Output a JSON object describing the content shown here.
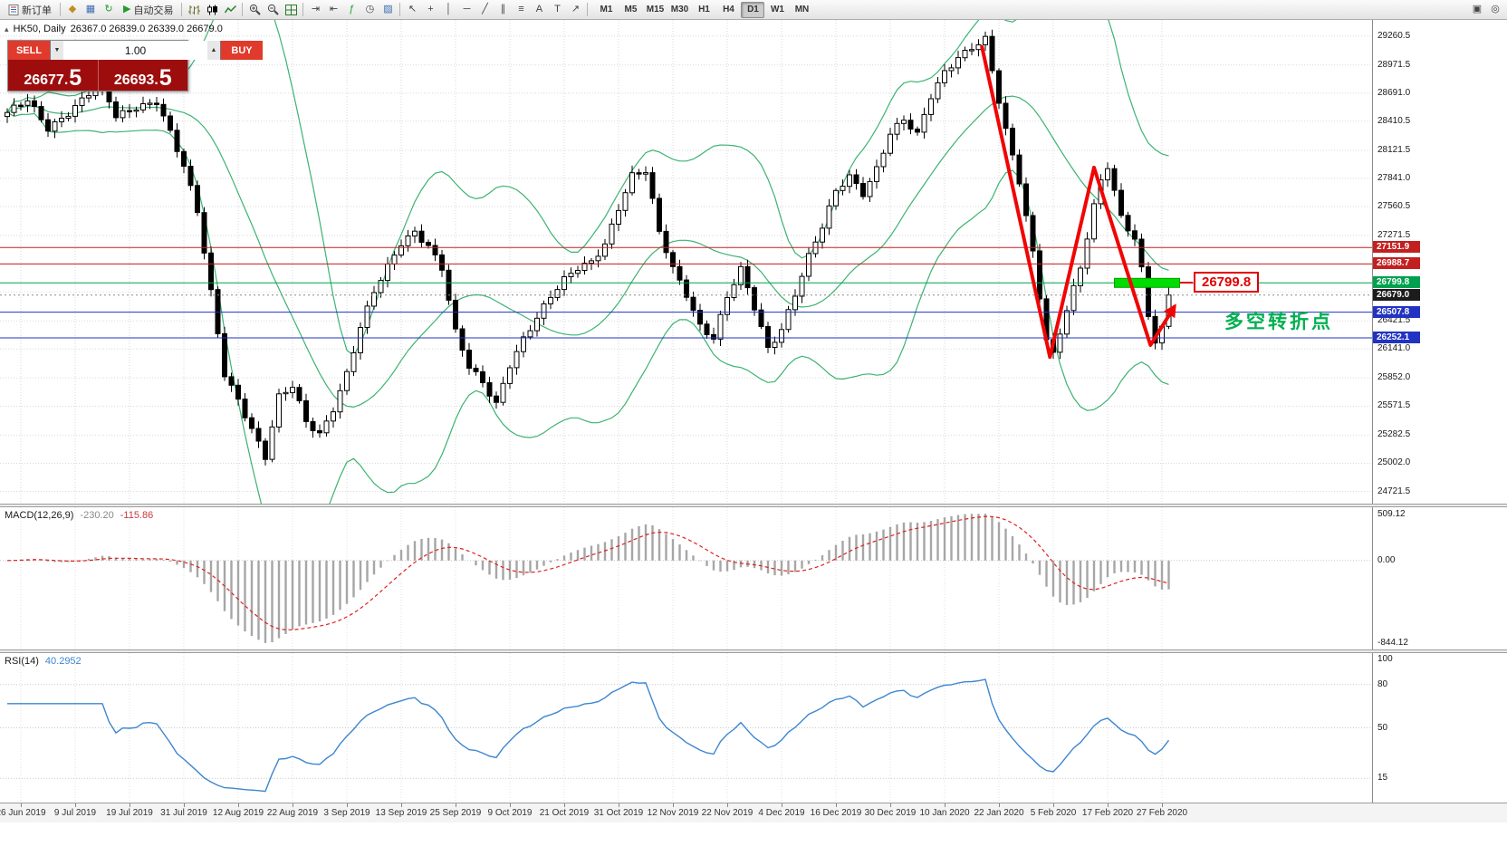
{
  "toolbar": {
    "new_order_label": "新订单",
    "autotrading_label": "自动交易",
    "timeframes": [
      "M1",
      "M5",
      "M15",
      "M30",
      "H1",
      "H4",
      "D1",
      "W1",
      "MN"
    ],
    "active_timeframe": "D1"
  },
  "icons": {
    "coins": "◆",
    "chart_window": "▦",
    "refresh": "↻",
    "play": "▶",
    "shift_end": "⇥",
    "auto_scroll": "⇤",
    "indicators": "ƒ",
    "clock": "◷",
    "template": "▨",
    "cursor": "↖",
    "crosshair": "+",
    "vertical_line": "│",
    "horizontal_line": "─",
    "trendline": "╱",
    "channel": "∥",
    "fibonacci": "≡",
    "text": "A",
    "label": "T",
    "arrow": "↗",
    "spin_up": "▲",
    "spin_down": "▼",
    "window_min": "▴",
    "window_grid": "▣",
    "search": "◎"
  },
  "chart_header": {
    "symbol_period": "HK50, Daily",
    "ohlc": "26367.0 26839.0 26339.0 26679.0"
  },
  "order_panel": {
    "sell_label": "SELL",
    "buy_label": "BUY",
    "volume": "1.00",
    "sell_price": "26677.5",
    "buy_price": "26693.5"
  },
  "annotations": {
    "price_callout": "26799.8",
    "callout_color": "#e00000",
    "callout_anchor_bar": 174.6,
    "note_text": "多空转折点",
    "note_color": "#00b050",
    "note_anchor_bar": 179.2,
    "note_anchor_price": 26445
  },
  "price_axis": {
    "plain_ticks": [
      29260.5,
      28971.5,
      28691.0,
      28410.5,
      28121.5,
      27841.0,
      27560.5,
      27271.5,
      26421.5,
      26141.0,
      25852.0,
      25571.5,
      25282.5,
      25002.0,
      24721.5
    ],
    "grid_only_ticks": [
      26991.0,
      26710.5
    ],
    "line_tags": [
      {
        "price": 27151.9,
        "label": "27151.9",
        "color": "#c22020",
        "style": "solid"
      },
      {
        "price": 26988.7,
        "label": "26988.7",
        "color": "#c22020",
        "style": "solid"
      },
      {
        "price": 26799.8,
        "label": "26799.8",
        "color": "#00a14e",
        "style": "solid"
      },
      {
        "price": 26679.0,
        "label": "26679.0",
        "color": "#1c1c1c",
        "style": "dotted"
      },
      {
        "price": 26507.8,
        "label": "26507.8",
        "color": "#2233c2",
        "style": "solid"
      },
      {
        "price": 26252.1,
        "label": "26252.1",
        "color": "#2233c2",
        "style": "solid"
      }
    ]
  },
  "macd_panel": {
    "label": "MACD(12,26,9)",
    "value_main": "-230.20",
    "value_signal": "-115.86",
    "axis_top": "509.12",
    "axis_zero": "0.00",
    "axis_bottom": "-844.12"
  },
  "rsi_panel": {
    "label": "RSI(14)",
    "value": "40.2952",
    "axis_labels": [
      100,
      80,
      50,
      15
    ],
    "levels": [
      80,
      50,
      15
    ]
  },
  "date_axis": [
    "26 Jun 2019",
    "9 Jul 2019",
    "19 Jul 2019",
    "31 Jul 2019",
    "12 Aug 2019",
    "22 Aug 2019",
    "3 Sep 2019",
    "13 Sep 2019",
    "25 Sep 2019",
    "9 Oct 2019",
    "21 Oct 2019",
    "31 Oct 2019",
    "12 Nov 2019",
    "22 Nov 2019",
    "4 Dec 2019",
    "16 Dec 2019",
    "30 Dec 2019",
    "10 Jan 2020",
    "22 Jan 2020",
    "5 Feb 2020",
    "17 Feb 2020",
    "27 Feb 2020"
  ],
  "chart_data": {
    "type": "candlestick",
    "symbol": "HK50",
    "period": "Daily",
    "bars_total": 172,
    "price_top": 29420,
    "price_bottom": 24600,
    "current_bar": {
      "open": 26367.0,
      "high": 26839.0,
      "low": 26339.0,
      "close": 26679.0
    },
    "close_anchors": [
      [
        0,
        28480
      ],
      [
        3,
        28620
      ],
      [
        6,
        28350
      ],
      [
        9,
        28500
      ],
      [
        12,
        28680
      ],
      [
        14,
        28760
      ],
      [
        16,
        28450
      ],
      [
        19,
        28560
      ],
      [
        22,
        28620
      ],
      [
        24,
        28300
      ],
      [
        26,
        27950
      ],
      [
        28,
        27500
      ],
      [
        30,
        26700
      ],
      [
        32,
        25900
      ],
      [
        34,
        25650
      ],
      [
        36,
        25350
      ],
      [
        38,
        25060
      ],
      [
        40,
        25650
      ],
      [
        42,
        25760
      ],
      [
        44,
        25420
      ],
      [
        46,
        25300
      ],
      [
        48,
        25560
      ],
      [
        50,
        25900
      ],
      [
        52,
        26350
      ],
      [
        54,
        26700
      ],
      [
        56,
        26950
      ],
      [
        58,
        27200
      ],
      [
        60,
        27320
      ],
      [
        62,
        27180
      ],
      [
        64,
        26950
      ],
      [
        66,
        26300
      ],
      [
        68,
        25950
      ],
      [
        70,
        25800
      ],
      [
        72,
        25600
      ],
      [
        74,
        26000
      ],
      [
        76,
        26250
      ],
      [
        78,
        26450
      ],
      [
        80,
        26650
      ],
      [
        82,
        26820
      ],
      [
        84,
        26950
      ],
      [
        86,
        27020
      ],
      [
        88,
        27200
      ],
      [
        90,
        27550
      ],
      [
        92,
        27860
      ],
      [
        94,
        27900
      ],
      [
        96,
        27300
      ],
      [
        98,
        26950
      ],
      [
        100,
        26700
      ],
      [
        102,
        26380
      ],
      [
        104,
        26250
      ],
      [
        106,
        26650
      ],
      [
        108,
        26920
      ],
      [
        110,
        26550
      ],
      [
        112,
        26150
      ],
      [
        114,
        26350
      ],
      [
        116,
        26700
      ],
      [
        118,
        27060
      ],
      [
        120,
        27350
      ],
      [
        122,
        27700
      ],
      [
        124,
        27860
      ],
      [
        126,
        27700
      ],
      [
        128,
        27950
      ],
      [
        130,
        28300
      ],
      [
        132,
        28420
      ],
      [
        134,
        28260
      ],
      [
        136,
        28650
      ],
      [
        138,
        28900
      ],
      [
        140,
        29060
      ],
      [
        142,
        29160
      ],
      [
        144,
        29230
      ],
      [
        146,
        28600
      ],
      [
        147,
        28300
      ],
      [
        149,
        27800
      ],
      [
        151,
        27100
      ],
      [
        153,
        26250
      ],
      [
        154,
        26100
      ],
      [
        156,
        26550
      ],
      [
        158,
        26950
      ],
      [
        160,
        27550
      ],
      [
        161,
        27800
      ],
      [
        162,
        27950
      ],
      [
        164,
        27450
      ],
      [
        166,
        27250
      ],
      [
        167,
        26950
      ],
      [
        168,
        26500
      ],
      [
        169,
        26230
      ],
      [
        170,
        26367
      ],
      [
        171,
        26679
      ]
    ],
    "bollinger": {
      "period": 20,
      "deviation": 2,
      "color": "#3cb371"
    },
    "macd": {
      "fast": 12,
      "slow": 26,
      "signal": 9,
      "hist_color": "#a6a6a6",
      "signal_color": "#e02020"
    },
    "rsi": {
      "period": 14,
      "color": "#3d86cf"
    },
    "zigzag_arrow": {
      "color": "#f00505",
      "points": [
        [
          143.5,
          29150
        ],
        [
          153.5,
          26060
        ],
        [
          160,
          27950
        ],
        [
          168.3,
          26180
        ],
        [
          171.8,
          26560
        ]
      ]
    },
    "highlight_bar": {
      "price": 26799.8,
      "from_bar": 163,
      "to_bar": 172.6,
      "color": "#00dd00",
      "border": "#00a000"
    },
    "horizontal_levels": [
      27151.9,
      26988.7,
      26799.8,
      26507.8,
      26252.1
    ]
  }
}
